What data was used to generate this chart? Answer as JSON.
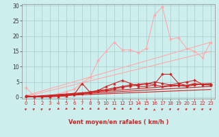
{
  "background_color": "#cceeed",
  "grid_color": "#aacccc",
  "xlabel": "Vent moyen/en rafales ( km/h )",
  "xlim": [
    -0.5,
    23.5
  ],
  "ylim": [
    -0.5,
    30.5
  ],
  "yticks": [
    0,
    5,
    10,
    15,
    20,
    25,
    30
  ],
  "xticks": [
    0,
    1,
    2,
    3,
    4,
    5,
    6,
    7,
    8,
    9,
    10,
    11,
    12,
    13,
    14,
    15,
    16,
    17,
    18,
    19,
    20,
    21,
    22,
    23
  ],
  "series": [
    {
      "name": "light_squiggly",
      "color": "#ffaaaa",
      "linewidth": 0.8,
      "marker": "D",
      "markersize": 2.0,
      "x": [
        0,
        1,
        2,
        3,
        4,
        5,
        6,
        7,
        8,
        9,
        10,
        11,
        12,
        13,
        14,
        15,
        16,
        17,
        18,
        19,
        20,
        21,
        22,
        23
      ],
      "y": [
        3.2,
        0.4,
        0.2,
        0.4,
        1.0,
        1.8,
        2.6,
        4.6,
        6.5,
        12.0,
        15.0,
        18.0,
        15.5,
        15.5,
        14.5,
        16.0,
        27.0,
        29.5,
        19.0,
        19.5,
        16.0,
        15.0,
        13.0,
        18.0
      ]
    },
    {
      "name": "trend_light1",
      "color": "#ffaaaa",
      "linewidth": 0.8,
      "marker": null,
      "markersize": 0,
      "x": [
        0,
        23
      ],
      "y": [
        0.5,
        18.0
      ]
    },
    {
      "name": "trend_light2",
      "color": "#ffaaaa",
      "linewidth": 0.8,
      "marker": null,
      "markersize": 0,
      "x": [
        0,
        23
      ],
      "y": [
        0.2,
        15.0
      ]
    },
    {
      "name": "dark_squiggly1",
      "color": "#cc2222",
      "linewidth": 0.8,
      "marker": "D",
      "markersize": 2.0,
      "x": [
        0,
        1,
        2,
        3,
        4,
        5,
        6,
        7,
        8,
        9,
        10,
        11,
        12,
        13,
        14,
        15,
        16,
        17,
        18,
        19,
        20,
        21,
        22,
        23
      ],
      "y": [
        0.3,
        0.2,
        0.2,
        0.3,
        0.5,
        0.8,
        1.0,
        1.3,
        1.7,
        2.2,
        2.5,
        3.0,
        3.5,
        4.0,
        4.2,
        4.5,
        4.2,
        7.5,
        7.5,
        4.5,
        5.0,
        5.5,
        4.2,
        4.2
      ]
    },
    {
      "name": "dark_squiggly2",
      "color": "#cc2222",
      "linewidth": 0.8,
      "marker": "D",
      "markersize": 2.0,
      "x": [
        0,
        1,
        2,
        3,
        4,
        5,
        6,
        7,
        8,
        9,
        10,
        11,
        12,
        13,
        14,
        15,
        16,
        17,
        18,
        19,
        20,
        21,
        22,
        23
      ],
      "y": [
        0.2,
        0.15,
        0.1,
        0.2,
        0.35,
        0.55,
        0.75,
        1.1,
        1.4,
        1.9,
        2.2,
        2.7,
        3.2,
        3.6,
        4.0,
        4.3,
        5.0,
        4.5,
        4.0,
        3.8,
        3.5,
        4.0,
        4.2,
        4.0
      ]
    },
    {
      "name": "dark_triangle",
      "color": "#cc2222",
      "linewidth": 0.8,
      "marker": "^",
      "markersize": 2.5,
      "x": [
        0,
        1,
        2,
        3,
        4,
        5,
        6,
        7,
        8,
        9,
        10,
        11,
        12,
        13,
        14,
        15,
        16,
        17,
        18,
        19,
        20,
        21,
        22,
        23
      ],
      "y": [
        0.5,
        0.2,
        0.1,
        0.15,
        0.25,
        0.35,
        0.9,
        4.5,
        1.5,
        2.2,
        3.5,
        4.5,
        5.5,
        4.5,
        3.5,
        3.5,
        4.0,
        3.5,
        4.0,
        4.5,
        3.8,
        4.5,
        4.0,
        4.0
      ]
    },
    {
      "name": "trend_dark1",
      "color": "#cc2222",
      "linewidth": 0.8,
      "marker": null,
      "markersize": 0,
      "x": [
        0,
        23
      ],
      "y": [
        0.1,
        4.5
      ]
    },
    {
      "name": "trend_dark2",
      "color": "#cc2222",
      "linewidth": 0.8,
      "marker": null,
      "markersize": 0,
      "x": [
        0,
        23
      ],
      "y": [
        0.05,
        3.5
      ]
    },
    {
      "name": "trend_dark3",
      "color": "#cc2222",
      "linewidth": 0.8,
      "marker": null,
      "markersize": 0,
      "x": [
        0,
        23
      ],
      "y": [
        0.02,
        2.5
      ]
    }
  ],
  "wind_arrows": {
    "x_positions": [
      0,
      1,
      2,
      3,
      4,
      5,
      6,
      7,
      8,
      9,
      10,
      11,
      12,
      13,
      14,
      15,
      16,
      17,
      18,
      19,
      20,
      21,
      22,
      23
    ],
    "angles_deg": [
      45,
      45,
      45,
      45,
      225,
      225,
      225,
      225,
      225,
      225,
      225,
      225,
      225,
      225,
      225,
      90,
      0,
      45,
      45,
      45,
      45,
      45,
      45,
      45
    ],
    "color": "#cc2222"
  }
}
